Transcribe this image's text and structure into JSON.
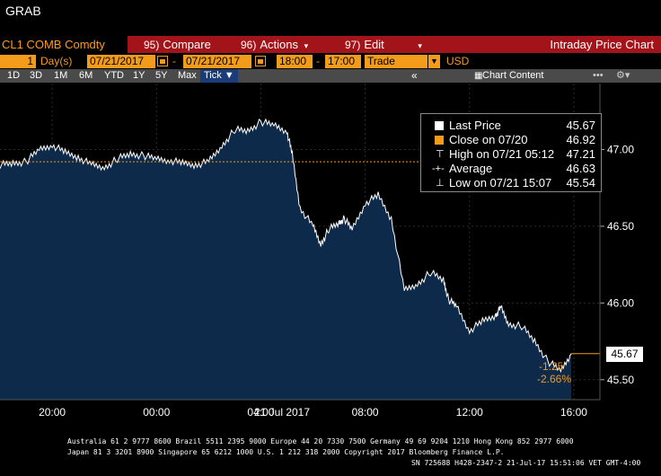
{
  "window": {
    "title": "GRAB"
  },
  "toolbar": {
    "security": "CL1 COMB Comdty",
    "compare": {
      "num": "95)",
      "label": "Compare"
    },
    "actions": {
      "num": "96)",
      "label": "Actions"
    },
    "edit": {
      "num": "97)",
      "label": "Edit"
    },
    "chart_title": "Intraday Price Chart"
  },
  "settings": {
    "period_count": "1",
    "period_unit": "Day(s)",
    "start_date": "07/21/2017",
    "end_date": "07/21/2017",
    "start_time": "18:00",
    "end_time": "17:00",
    "type": "Trade",
    "currency": "USD"
  },
  "timeframes": [
    "1D",
    "3D",
    "1M",
    "6M",
    "YTD",
    "1Y",
    "5Y",
    "Max"
  ],
  "tick_label": "Tick ▼",
  "collapse_label": "«",
  "chart_content_label": "Chart Content",
  "legend": {
    "rows": [
      {
        "label": "Last Price",
        "value": "45.67",
        "swatch": "#ffffff"
      },
      {
        "label": "Close on 07/20",
        "value": "46.92",
        "swatch": "#f39b1a"
      },
      {
        "label": "High on 07/21 05:12",
        "value": "47.21",
        "swatch": "marker"
      },
      {
        "label": "Average",
        "value": "46.63",
        "swatch": "marker"
      },
      {
        "label": "Low on 07/21 15:07",
        "value": "45.54",
        "swatch": "marker"
      }
    ]
  },
  "last_value_tag": "45.67",
  "change": {
    "abs": "-1.25",
    "pct": "-2.66%"
  },
  "colors": {
    "area_fill": "#0e2a4a",
    "orange": "#f39b1a",
    "red_bar": "#a3141a"
  },
  "chart_data": {
    "type": "area",
    "title": "",
    "xlabel": "21 Jul 2017",
    "ylabel": "",
    "x_ticks": [
      "20:00",
      "00:00",
      "04:00",
      "08:00",
      "12:00",
      "16:00"
    ],
    "y_ticks": [
      "45.50",
      "46.00",
      "46.50",
      "47.00"
    ],
    "ylim": [
      45.37,
      47.43
    ],
    "xlim_hours": [
      18,
      41
    ],
    "reference_line": {
      "name": "Close on 07/20",
      "value": 46.92
    },
    "series": [
      {
        "name": "Last Price",
        "x_hours": [
          18.0,
          18.5,
          19.0,
          19.5,
          20.0,
          20.5,
          21.0,
          21.5,
          22.0,
          22.5,
          23.0,
          23.5,
          24.0,
          24.5,
          25.0,
          25.5,
          26.0,
          26.5,
          27.0,
          27.5,
          28.0,
          28.5,
          29.0,
          29.2,
          29.5,
          30.0,
          30.3,
          30.6,
          31.0,
          31.2,
          31.5,
          32.0,
          32.5,
          33.0,
          33.5,
          34.0,
          34.5,
          35.0,
          35.2,
          35.5,
          36.0,
          36.5,
          37.0,
          37.2,
          37.5,
          38.0,
          38.5,
          39.0,
          39.5,
          39.9
        ],
        "values": [
          46.9,
          46.91,
          46.92,
          47.0,
          47.03,
          46.98,
          46.95,
          46.9,
          46.88,
          46.94,
          46.97,
          46.96,
          46.94,
          46.93,
          46.91,
          46.9,
          46.92,
          47.02,
          47.13,
          47.12,
          47.18,
          47.16,
          47.12,
          46.97,
          46.62,
          46.5,
          46.38,
          46.48,
          46.52,
          46.55,
          46.48,
          46.65,
          46.7,
          46.55,
          46.08,
          46.12,
          46.2,
          46.15,
          46.02,
          45.98,
          45.82,
          45.88,
          45.92,
          45.97,
          45.86,
          45.85,
          45.75,
          45.62,
          45.56,
          45.67
        ]
      }
    ],
    "high": {
      "time": "05:12",
      "value": 47.21
    },
    "low": {
      "time": "15:07",
      "value": 45.54
    },
    "average": 46.63
  },
  "footer": {
    "line1": "Australia 61 2 9777 8600 Brazil 5511 2395 9000 Europe 44 20 7330 7500 Germany 49 69 9204 1210 Hong Kong 852 2977 6000",
    "line2": "Japan 81 3 3201 8900          Singapore 65 6212 1000          U.S. 1 212 318 2000               Copyright 2017 Bloomberg Finance L.P.",
    "line3": "SN 725688 H428-2347-2 21-Jul-17 15:51:06 VET   GMT-4:00"
  }
}
